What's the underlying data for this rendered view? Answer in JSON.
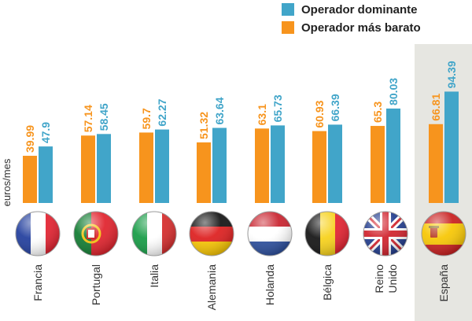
{
  "chart_data": {
    "type": "bar",
    "title": "",
    "xlabel": "",
    "ylabel": "euros/mes",
    "ylim": [
      0,
      100
    ],
    "categories": [
      {
        "name": "Francia",
        "lines": [
          "Francia"
        ],
        "flag": "france-flag"
      },
      {
        "name": "Portugal",
        "lines": [
          "Portugal"
        ],
        "flag": "portugal-flag"
      },
      {
        "name": "Italia",
        "lines": [
          "Italia"
        ],
        "flag": "italy-flag"
      },
      {
        "name": "Alemania",
        "lines": [
          "Alemania"
        ],
        "flag": "germany-flag"
      },
      {
        "name": "Holanda",
        "lines": [
          "Holanda"
        ],
        "flag": "netherlands-flag"
      },
      {
        "name": "Bélgica",
        "lines": [
          "Bélgica"
        ],
        "flag": "belgium-flag"
      },
      {
        "name": "Reino Unido",
        "lines": [
          "Reino",
          "Unido"
        ],
        "flag": "uk-flag"
      },
      {
        "name": "España",
        "lines": [
          "España"
        ],
        "flag": "spain-flag"
      }
    ],
    "series": [
      {
        "name": "Operador más barato",
        "color": "#f7941d",
        "values": [
          39.99,
          57.14,
          59.7,
          51.32,
          63.1,
          60.93,
          65.3,
          66.81
        ],
        "labels": [
          "39.99",
          "57.14",
          "59.7",
          "51.32",
          "63.1",
          "60.93",
          "65.3",
          "66.81"
        ]
      },
      {
        "name": "Operador dominante",
        "color": "#41a5c9",
        "values": [
          47.9,
          58.45,
          62.27,
          63.64,
          65.73,
          66.39,
          80.03,
          94.39
        ],
        "labels": [
          "47.9",
          "58.45",
          "62.27",
          "63.64",
          "65.73",
          "66.39",
          "80.03",
          "94.39"
        ]
      }
    ],
    "legend": [
      {
        "label": "Operador dominante",
        "color": "#41a5c9"
      },
      {
        "label": "Operador más barato",
        "color": "#f7941d"
      }
    ],
    "highlight_category": "España",
    "highlight_color": "#e6e6e1"
  }
}
